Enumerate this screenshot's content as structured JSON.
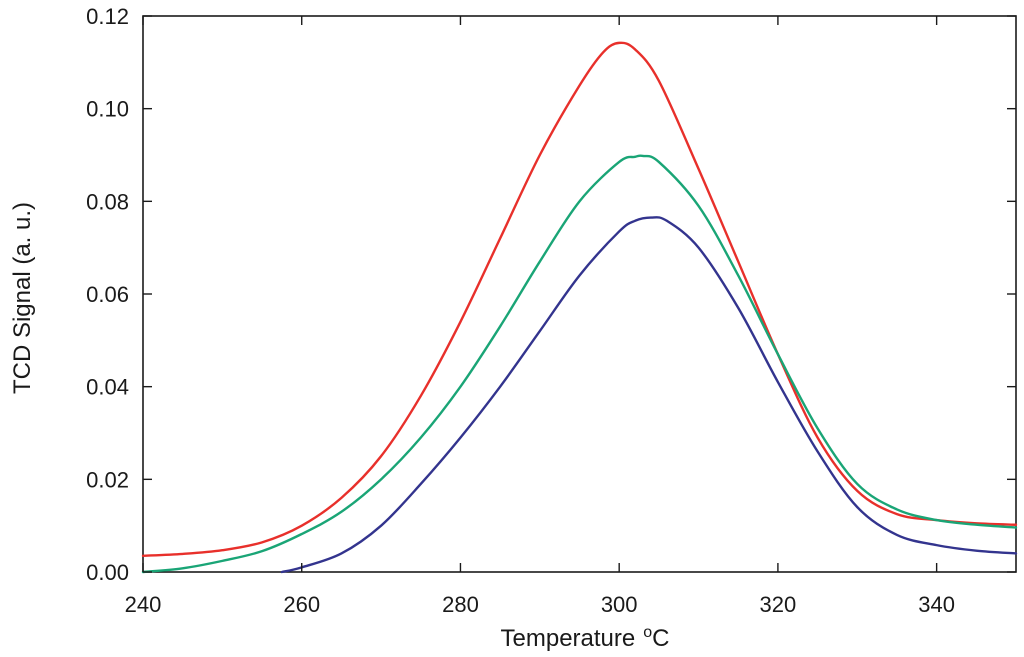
{
  "chart_data": {
    "type": "line",
    "xlabel": "Temperature",
    "xlabel_unit_sup": "o",
    "xlabel_unit": "C",
    "ylabel": "TCD Signal (a. u.)",
    "xlim": [
      240,
      350
    ],
    "ylim": [
      0,
      0.12
    ],
    "xticks": [
      240,
      260,
      280,
      300,
      320,
      340
    ],
    "xtick_labels": [
      "240",
      "260",
      "280",
      "300",
      "320",
      "340"
    ],
    "yticks": [
      0,
      0.02,
      0.04,
      0.06,
      0.08,
      0.1,
      0.12
    ],
    "ytick_labels": [
      "0.00",
      "0.02",
      "0.04",
      "0.06",
      "0.08",
      "0.10",
      "0.12"
    ],
    "grid": false,
    "legend": "none",
    "colors": {
      "axes": "#1a1a1a"
    },
    "series": [
      {
        "color": "#e8302b",
        "x": [
          240,
          245,
          250,
          255,
          260,
          265,
          270,
          275,
          280,
          285,
          290,
          295,
          298,
          300,
          302,
          305,
          310,
          315,
          320,
          325,
          330,
          335,
          340,
          345,
          350
        ],
        "y": [
          0.0035,
          0.0039,
          0.0047,
          0.0064,
          0.01,
          0.016,
          0.025,
          0.038,
          0.054,
          0.072,
          0.09,
          0.105,
          0.1122,
          0.1142,
          0.1128,
          0.106,
          0.087,
          0.067,
          0.047,
          0.029,
          0.0175,
          0.0125,
          0.0112,
          0.0105,
          0.0102
        ]
      },
      {
        "color": "#1aa576",
        "x": [
          240,
          245,
          250,
          255,
          260,
          265,
          270,
          275,
          280,
          285,
          290,
          295,
          300,
          302,
          303,
          305,
          310,
          315,
          320,
          325,
          330,
          335,
          340,
          345,
          350
        ],
        "y": [
          0.0,
          0.0008,
          0.0024,
          0.0045,
          0.0082,
          0.013,
          0.02,
          0.029,
          0.04,
          0.053,
          0.067,
          0.08,
          0.0885,
          0.0896,
          0.0898,
          0.0885,
          0.079,
          0.064,
          0.047,
          0.031,
          0.019,
          0.0135,
          0.0112,
          0.0102,
          0.0096
        ]
      },
      {
        "color": "#33348e",
        "x": [
          257.5,
          260,
          265,
          270,
          275,
          280,
          285,
          290,
          295,
          300,
          302,
          304,
          306,
          310,
          315,
          320,
          325,
          330,
          335,
          340,
          345,
          350
        ],
        "y": [
          0.0,
          0.001,
          0.004,
          0.01,
          0.019,
          0.029,
          0.04,
          0.052,
          0.064,
          0.0735,
          0.0758,
          0.0765,
          0.0758,
          0.07,
          0.057,
          0.041,
          0.026,
          0.014,
          0.008,
          0.0058,
          0.0046,
          0.004
        ]
      }
    ]
  }
}
